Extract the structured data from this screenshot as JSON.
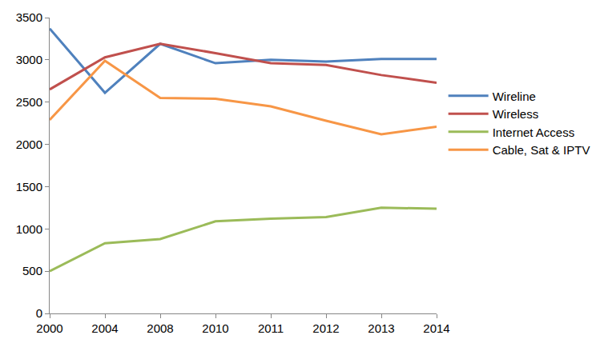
{
  "chart_data": {
    "type": "line",
    "categories": [
      "2000",
      "2004",
      "2008",
      "2010",
      "2011",
      "2012",
      "2013",
      "2014"
    ],
    "series": [
      {
        "name": "Wireline",
        "color": "#4f81bd",
        "values": [
          3370,
          2610,
          3190,
          2960,
          3000,
          2980,
          3010,
          3010
        ]
      },
      {
        "name": "Wireless",
        "color": "#c0504d",
        "values": [
          2650,
          3030,
          3190,
          3080,
          2960,
          2940,
          2820,
          2730
        ]
      },
      {
        "name": "Internet Access",
        "color": "#9bbb59",
        "values": [
          500,
          830,
          880,
          1090,
          1120,
          1140,
          1250,
          1240
        ]
      },
      {
        "name": "Cable, Sat & IPTV",
        "color": "#f79646",
        "values": [
          2290,
          2990,
          2550,
          2540,
          2450,
          2280,
          2120,
          2210
        ]
      }
    ],
    "ylim": [
      0,
      3500
    ],
    "yticks": [
      0,
      500,
      1000,
      1500,
      2000,
      2500,
      3000,
      3500
    ],
    "grid": false,
    "legend": "right"
  }
}
